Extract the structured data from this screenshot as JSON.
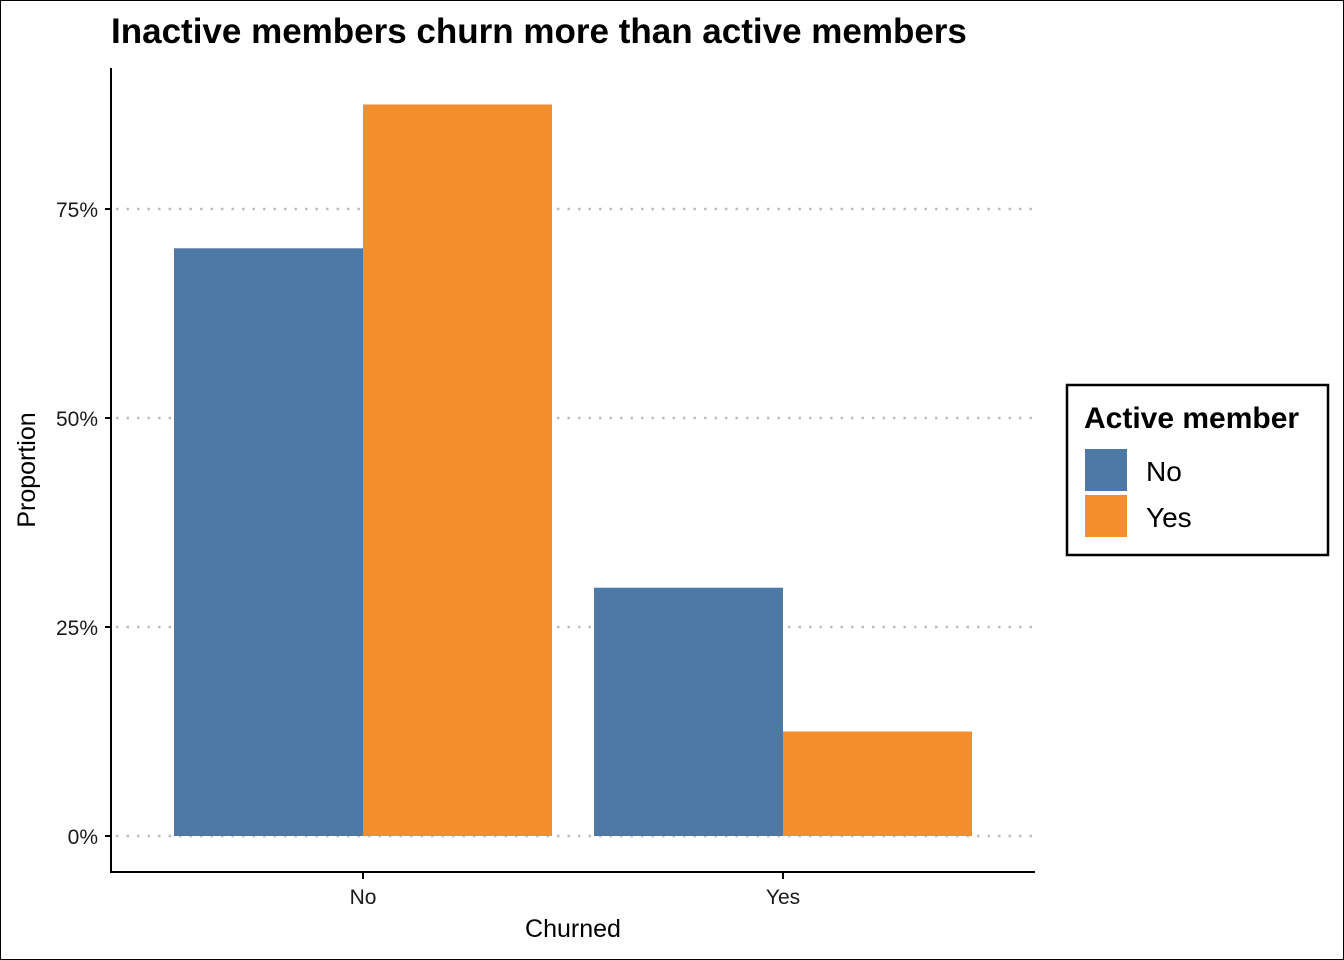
{
  "chart_data": {
    "type": "bar",
    "title": "Inactive members churn more than active members",
    "xlabel": "Churned",
    "ylabel": "Proportion",
    "categories": [
      "No",
      "Yes"
    ],
    "series": [
      {
        "name": "No",
        "color": "#4e79a7",
        "values": [
          0.703,
          0.297
        ]
      },
      {
        "name": "Yes",
        "color": "#f28e2b",
        "values": [
          0.875,
          0.125
        ]
      }
    ],
    "ylim": [
      0,
      0.92
    ],
    "yticks": [
      0,
      0.25,
      0.5,
      0.75
    ],
    "ytick_labels": [
      "0%",
      "25%",
      "50%",
      "75%"
    ],
    "grid": "horizontal dotted",
    "legend": {
      "title": "Active member",
      "position": "right",
      "entries": [
        "No",
        "Yes"
      ]
    }
  }
}
